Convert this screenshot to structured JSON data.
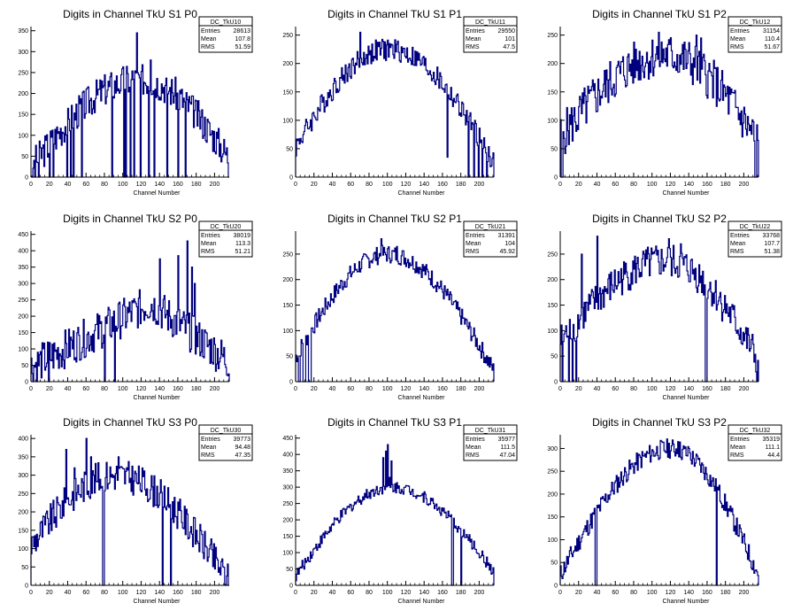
{
  "colors": {
    "line": "#00007f",
    "axis": "#000000",
    "background": "#ffffff"
  },
  "chart_data": [
    {
      "type": "histogram",
      "title": "Digits in Channel TkU S1 P0",
      "xlabel": "Channel Number",
      "stats": {
        "name": "DC_TkU10",
        "entries_label": "Entries",
        "entries": "28613",
        "mean_label": "Mean",
        "mean": "107.8",
        "rms_label": "RMS",
        "rms": "51.59"
      },
      "xlim": [
        0,
        216
      ],
      "ylim": [
        0,
        360
      ],
      "xticks": [
        "0",
        "20",
        "40",
        "60",
        "80",
        "100",
        "120",
        "140",
        "160",
        "180",
        "200"
      ],
      "xtick_values": [
        0,
        20,
        40,
        60,
        80,
        100,
        120,
        140,
        160,
        180,
        200
      ],
      "yticks": [
        "0",
        "50",
        "100",
        "150",
        "200",
        "250",
        "300",
        "350"
      ],
      "ytick_values": [
        0,
        50,
        100,
        150,
        200,
        250,
        300,
        350
      ],
      "shape": "rise",
      "base": 25,
      "peak": 235,
      "peak_at": 118,
      "end": 45,
      "noise": 40,
      "dips": [
        1,
        4,
        8,
        20,
        24,
        39,
        43,
        46,
        55,
        88,
        101,
        103,
        108,
        112,
        119,
        128,
        134,
        148,
        160,
        168,
        215
      ],
      "spikes": [
        [
          3,
          40
        ],
        [
          115,
          345
        ],
        [
          130,
          280
        ],
        [
          98,
          245
        ],
        [
          86,
          240
        ]
      ]
    },
    {
      "type": "histogram",
      "title": "Digits in Channel TkU S1 P1",
      "xlabel": "Channel Number",
      "stats": {
        "name": "DC_TkU11",
        "entries_label": "Entries",
        "entries": "29550",
        "mean_label": "Mean",
        "mean": "101",
        "rms_label": "RMS",
        "rms": "47.5"
      },
      "xlim": [
        0,
        216
      ],
      "ylim": [
        0,
        265
      ],
      "xticks": [
        "0",
        "20",
        "40",
        "60",
        "80",
        "100",
        "120",
        "140",
        "160",
        "180",
        "200"
      ],
      "xtick_values": [
        0,
        20,
        40,
        60,
        80,
        100,
        120,
        140,
        160,
        180,
        200
      ],
      "yticks": [
        "0",
        "50",
        "100",
        "150",
        "200",
        "250"
      ],
      "ytick_values": [
        0,
        50,
        100,
        150,
        200,
        250
      ],
      "shape": "bell",
      "base": 55,
      "peak": 225,
      "peak_at": 100,
      "end": 25,
      "noise": 20,
      "dips": [
        188,
        194,
        199,
        203,
        208
      ],
      "spikes": [
        [
          70,
          255
        ],
        [
          165,
          35
        ]
      ]
    },
    {
      "type": "histogram",
      "title": "Digits in Channel TkU S1 P2",
      "xlabel": "Channel Number",
      "stats": {
        "name": "DC_TkU12",
        "entries_label": "Entries",
        "entries": "31154",
        "mean_label": "Mean",
        "mean": "110.4",
        "rms_label": "RMS",
        "rms": "51.67"
      },
      "xlim": [
        0,
        216
      ],
      "ylim": [
        0,
        265
      ],
      "xticks": [
        "0",
        "20",
        "40",
        "60",
        "80",
        "100",
        "120",
        "140",
        "160",
        "180",
        "200"
      ],
      "xtick_values": [
        0,
        20,
        40,
        60,
        80,
        100,
        120,
        140,
        160,
        180,
        200
      ],
      "yticks": [
        "0",
        "50",
        "100",
        "150",
        "200",
        "250"
      ],
      "ytick_values": [
        0,
        50,
        100,
        150,
        200,
        250
      ],
      "shape": "bell",
      "base": 70,
      "peak": 215,
      "peak_at": 115,
      "end": 60,
      "noise": 40,
      "dips": [
        1,
        2,
        212,
        213
      ],
      "spikes": [
        [
          107,
          255
        ],
        [
          148,
          250
        ],
        [
          153,
          245
        ]
      ]
    },
    {
      "type": "histogram",
      "title": "Digits in Channel TkU S2 P0",
      "xlabel": "Channel Number",
      "stats": {
        "name": "DC_TkU20",
        "entries_label": "Entries",
        "entries": "38019",
        "mean_label": "Mean",
        "mean": "113.3",
        "rms_label": "RMS",
        "rms": "51.21"
      },
      "xlim": [
        0,
        216
      ],
      "ylim": [
        0,
        460
      ],
      "xticks": [
        "0",
        "20",
        "40",
        "60",
        "80",
        "100",
        "120",
        "140",
        "160",
        "180",
        "200"
      ],
      "xtick_values": [
        0,
        20,
        40,
        60,
        80,
        100,
        120,
        140,
        160,
        180,
        200
      ],
      "yticks": [
        "0",
        "50",
        "100",
        "150",
        "200",
        "250",
        "300",
        "350",
        "400",
        "450"
      ],
      "ytick_values": [
        0,
        50,
        100,
        150,
        200,
        250,
        300,
        350,
        400,
        450
      ],
      "shape": "ramp",
      "base": 45,
      "peak": 240,
      "peak_at": 130,
      "end": 60,
      "noise": 60,
      "dips": [
        19,
        80,
        91
      ],
      "spikes": [
        [
          140,
          375
        ],
        [
          170,
          430
        ],
        [
          160,
          385
        ],
        [
          175,
          350
        ],
        [
          178,
          300
        ]
      ]
    },
    {
      "type": "histogram",
      "title": "Digits in Channel TkU S2 P1",
      "xlabel": "Channel Number",
      "stats": {
        "name": "DC_TkU21",
        "entries_label": "Entries",
        "entries": "31391",
        "mean_label": "Mean",
        "mean": "104",
        "rms_label": "RMS",
        "rms": "45.92"
      },
      "xlim": [
        0,
        216
      ],
      "ylim": [
        0,
        295
      ],
      "xticks": [
        "0",
        "20",
        "40",
        "60",
        "80",
        "100",
        "120",
        "140",
        "160",
        "180",
        "200"
      ],
      "xtick_values": [
        0,
        20,
        40,
        60,
        80,
        100,
        120,
        140,
        160,
        180,
        200
      ],
      "yticks": [
        "0",
        "50",
        "100",
        "150",
        "200",
        "250"
      ],
      "ytick_values": [
        0,
        50,
        100,
        150,
        200,
        250
      ],
      "shape": "bell",
      "base": 50,
      "peak": 250,
      "peak_at": 100,
      "end": 20,
      "noise": 18,
      "dips": [
        3,
        4,
        8,
        9,
        10,
        14,
        15,
        16
      ],
      "spikes": [
        [
          93,
          280
        ],
        [
          110,
          265
        ]
      ]
    },
    {
      "type": "histogram",
      "title": "Digits in Channel TkU S2 P2",
      "xlabel": "Channel Number",
      "stats": {
        "name": "DC_TkU22",
        "entries_label": "Entries",
        "entries": "33768",
        "mean_label": "Mean",
        "mean": "107.7",
        "rms_label": "RMS",
        "rms": "51.38"
      },
      "xlim": [
        0,
        216
      ],
      "ylim": [
        0,
        295
      ],
      "xticks": [
        "0",
        "20",
        "40",
        "60",
        "80",
        "100",
        "120",
        "140",
        "160",
        "180",
        "200"
      ],
      "xtick_values": [
        0,
        20,
        40,
        60,
        80,
        100,
        120,
        140,
        160,
        180,
        200
      ],
      "yticks": [
        "0",
        "50",
        "100",
        "150",
        "200",
        "250"
      ],
      "ytick_values": [
        0,
        50,
        100,
        150,
        200,
        250
      ],
      "shape": "bell",
      "base": 80,
      "peak": 235,
      "peak_at": 115,
      "end": 40,
      "noise": 35,
      "dips": [
        2,
        9,
        13,
        17,
        158,
        159,
        214
      ],
      "spikes": [
        [
          40,
          285
        ],
        [
          23,
          250
        ],
        [
          118,
          280
        ],
        [
          131,
          270
        ]
      ]
    },
    {
      "type": "histogram",
      "title": "Digits in Channel TkU S3 P0",
      "xlabel": "Channel Number",
      "stats": {
        "name": "DC_TkU30",
        "entries_label": "Entries",
        "entries": "39773",
        "mean_label": "Mean",
        "mean": "94.48",
        "rms_label": "RMS",
        "rms": "47.35"
      },
      "xlim": [
        0,
        216
      ],
      "ylim": [
        0,
        410
      ],
      "xticks": [
        "0",
        "20",
        "40",
        "60",
        "80",
        "100",
        "120",
        "140",
        "160",
        "180",
        "200"
      ],
      "xtick_values": [
        0,
        20,
        40,
        60,
        80,
        100,
        120,
        140,
        160,
        180,
        200
      ],
      "yticks": [
        "0",
        "50",
        "100",
        "150",
        "200",
        "250",
        "300",
        "350",
        "400"
      ],
      "ytick_values": [
        0,
        50,
        100,
        150,
        200,
        250,
        300,
        350,
        400
      ],
      "shape": "bell",
      "base": 110,
      "peak": 300,
      "peak_at": 90,
      "end": 10,
      "noise": 45,
      "dips": [
        78,
        79,
        143,
        152
      ],
      "spikes": [
        [
          38,
          370
        ],
        [
          60,
          400
        ],
        [
          65,
          350
        ],
        [
          95,
          350
        ],
        [
          47,
          320
        ]
      ]
    },
    {
      "type": "histogram",
      "title": "Digits in Channel TkU S3 P1",
      "xlabel": "Channel Number",
      "stats": {
        "name": "DC_TkU31",
        "entries_label": "Entries",
        "entries": "35977",
        "mean_label": "Mean",
        "mean": "111.5",
        "rms_label": "RMS",
        "rms": "47.04"
      },
      "xlim": [
        0,
        216
      ],
      "ylim": [
        0,
        460
      ],
      "xticks": [
        "0",
        "20",
        "40",
        "60",
        "80",
        "100",
        "120",
        "140",
        "160",
        "180",
        "200"
      ],
      "xtick_values": [
        0,
        20,
        40,
        60,
        80,
        100,
        120,
        140,
        160,
        180,
        200
      ],
      "yticks": [
        "0",
        "50",
        "100",
        "150",
        "200",
        "250",
        "300",
        "350",
        "400",
        "450"
      ],
      "ytick_values": [
        0,
        50,
        100,
        150,
        200,
        250,
        300,
        350,
        400,
        450
      ],
      "shape": "bell",
      "base": 30,
      "peak": 300,
      "peak_at": 105,
      "end": 40,
      "noise": 18,
      "dips": [
        170,
        171,
        180
      ],
      "spikes": [
        [
          95,
          390
        ],
        [
          100,
          430
        ],
        [
          98,
          410
        ],
        [
          104,
          380
        ],
        [
          102,
          330
        ]
      ]
    },
    {
      "type": "histogram",
      "title": "Digits in Channel TkU S3 P2",
      "xlabel": "Channel Number",
      "stats": {
        "name": "DC_TkU32",
        "entries_label": "Entries",
        "entries": "35319",
        "mean_label": "Mean",
        "mean": "111.1",
        "rms_label": "RMS",
        "rms": "44.4"
      },
      "xlim": [
        0,
        216
      ],
      "ylim": [
        0,
        330
      ],
      "xticks": [
        "0",
        "20",
        "40",
        "60",
        "80",
        "100",
        "120",
        "140",
        "160",
        "180",
        "200"
      ],
      "xtick_values": [
        0,
        20,
        40,
        60,
        80,
        100,
        120,
        140,
        160,
        180,
        200
      ],
      "yticks": [
        "0",
        "50",
        "100",
        "150",
        "200",
        "250",
        "300"
      ],
      "ytick_values": [
        0,
        50,
        100,
        150,
        200,
        250,
        300
      ],
      "shape": "bell",
      "base": 25,
      "peak": 300,
      "peak_at": 120,
      "end": 20,
      "noise": 22,
      "dips": [
        38,
        39,
        170
      ],
      "spikes": [
        [
          128,
          315
        ],
        [
          140,
          300
        ]
      ]
    }
  ]
}
